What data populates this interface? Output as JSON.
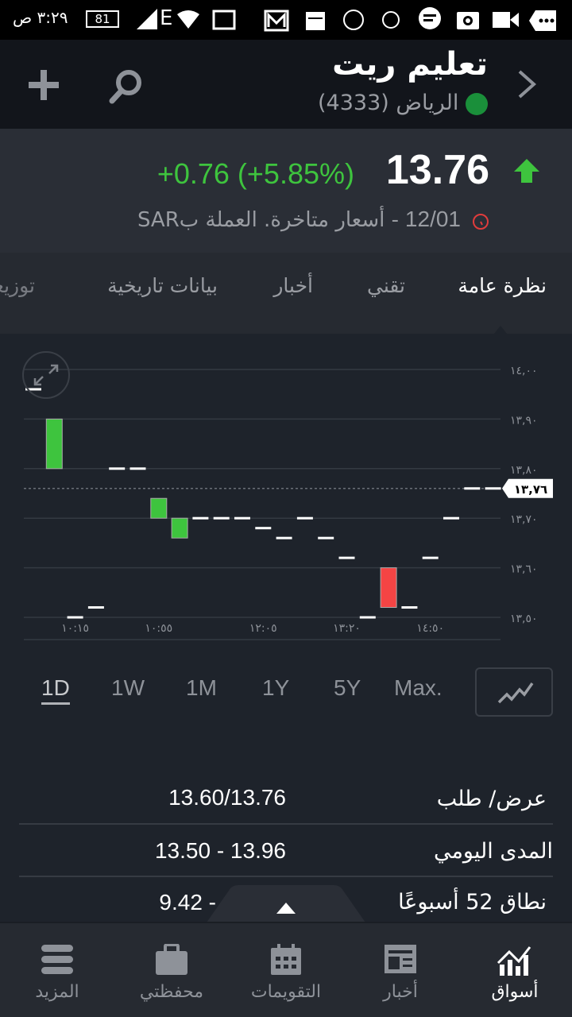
{
  "status_bar": {
    "time": "٣:٢٩ ص",
    "battery": "81",
    "network": "E"
  },
  "header": {
    "title": "تعليم ريت",
    "exchange": "الرياض",
    "symbol": "(4333)",
    "back_icon": "chevron-right-icon",
    "search_icon": "search-icon",
    "add_icon": "plus-icon"
  },
  "quote": {
    "price": "13.76",
    "change": "+0.76 (+5.85%)",
    "direction": "up",
    "date": "12/01",
    "note": "- أسعار متاخرة. العملة بSAR",
    "up_color": "#3ec43e",
    "down_color": "#f44444"
  },
  "tabs": [
    {
      "label": "نظرة عامة",
      "active": true
    },
    {
      "label": "تقني"
    },
    {
      "label": "أخبار"
    },
    {
      "label": "بيانات تاريخية"
    },
    {
      "label": "توزيعات"
    }
  ],
  "chart_data": {
    "type": "candlestick",
    "ylim": [
      13.5,
      14.0
    ],
    "y_ticks": [
      "١٤,٠٠",
      "١٣,٩٠",
      "١٣,٨٠",
      "١٣,٧٠",
      "١٣,٦٠",
      "١٣,٥٠"
    ],
    "y_tick_values": [
      14.0,
      13.9,
      13.8,
      13.7,
      13.6,
      13.5
    ],
    "x_ticks": [
      {
        "label": "١٠:١٥",
        "index": 2
      },
      {
        "label": "١٠:٥٥",
        "index": 6
      },
      {
        "label": "١٢:٠٥",
        "index": 11
      },
      {
        "label": "١٣:٢٠",
        "index": 15
      },
      {
        "label": "١٤:٥٠",
        "index": 19
      }
    ],
    "last_price": 13.76,
    "last_price_label": "١٣,٧٦",
    "open": [
      13.96,
      13.8,
      13.5,
      13.52,
      13.8,
      13.8,
      13.7,
      13.66,
      13.7,
      13.7,
      13.7,
      13.68,
      13.66,
      13.7,
      13.66,
      13.62,
      13.5,
      13.6,
      13.52,
      13.62,
      13.7,
      13.76,
      13.76
    ],
    "close": [
      13.96,
      13.9,
      13.5,
      13.52,
      13.8,
      13.8,
      13.74,
      13.7,
      13.7,
      13.7,
      13.7,
      13.68,
      13.66,
      13.7,
      13.66,
      13.62,
      13.5,
      13.52,
      13.52,
      13.62,
      13.7,
      13.76,
      13.76
    ],
    "grid": true
  },
  "ranges": [
    {
      "label": "1D",
      "active": true
    },
    {
      "label": "1W"
    },
    {
      "label": "1M"
    },
    {
      "label": "1Y"
    },
    {
      "label": "5Y"
    },
    {
      "label": "Max."
    }
  ],
  "chart_type_icon": "line-chart-icon",
  "stats": [
    {
      "label": "عرض/ طلب",
      "value": "13.60/13.76"
    },
    {
      "label": "المدى اليومي",
      "value": "13.50 - 13.96"
    },
    {
      "label": "نطاق 52 أسبوعًا",
      "value": "9.42 -"
    }
  ],
  "nav": [
    {
      "label": "أسواق",
      "icon": "markets-icon",
      "active": true
    },
    {
      "label": "أخبار",
      "icon": "news-icon"
    },
    {
      "label": "التقويمات",
      "icon": "calendar-icon"
    },
    {
      "label": "محفظتي",
      "icon": "portfolio-icon"
    },
    {
      "label": "المزيد",
      "icon": "menu-icon"
    }
  ]
}
